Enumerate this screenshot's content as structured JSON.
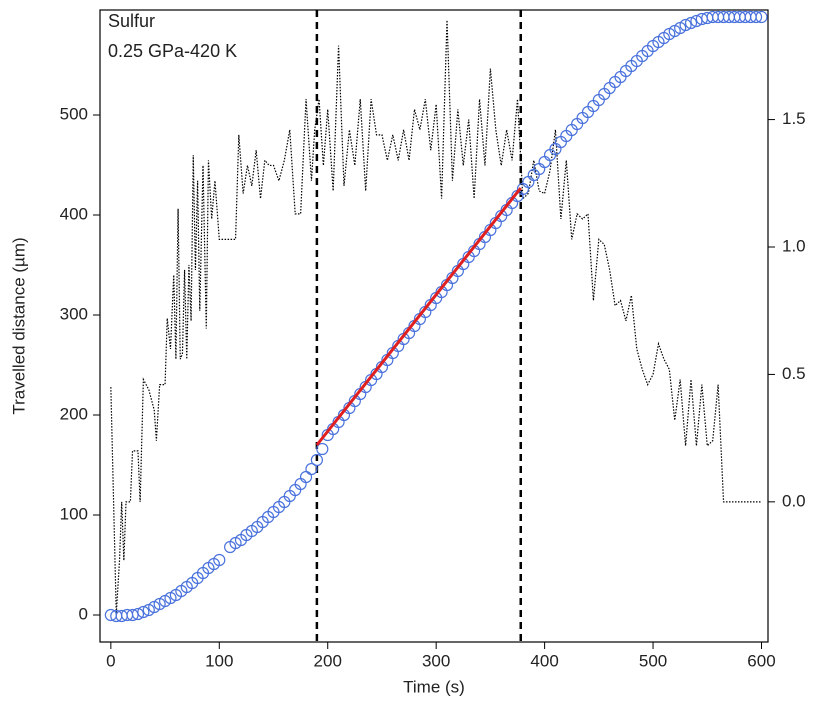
{
  "chart_data": {
    "type": "scatter-line",
    "annotations": [
      "Sulfur",
      "0.25 GPa-420 K"
    ],
    "xlabel": "Time (s)",
    "ylabel": "Travelled distance (µm)",
    "xlim": [
      -10,
      606
    ],
    "xticks": [
      0,
      100,
      200,
      300,
      400,
      500,
      600
    ],
    "ylim": [
      -27,
      605
    ],
    "yticks": [
      0,
      100,
      200,
      300,
      400,
      500
    ],
    "y2lim": [
      -0.55,
      1.93
    ],
    "y2ticks": [
      {
        "value": 0,
        "label": "0.0"
      },
      {
        "value": 0.5,
        "label": "0.5"
      },
      {
        "value": 1,
        "label": "1.0"
      },
      {
        "value": 1.5,
        "label": "1.5"
      }
    ],
    "vlines": [
      190,
      378
    ],
    "series": [
      {
        "style": "markers",
        "color": "#4a72dc",
        "x": [
          0,
          5,
          10,
          15,
          20,
          25,
          30,
          35,
          40,
          45,
          50,
          55,
          60,
          65,
          70,
          75,
          80,
          85,
          90,
          95,
          100,
          110,
          115,
          120,
          125,
          130,
          135,
          140,
          145,
          150,
          155,
          160,
          165,
          170,
          175,
          180,
          185,
          190,
          195,
          200,
          205,
          210,
          215,
          220,
          225,
          230,
          235,
          240,
          245,
          250,
          255,
          260,
          265,
          270,
          275,
          280,
          285,
          290,
          295,
          300,
          305,
          310,
          315,
          320,
          325,
          330,
          335,
          340,
          345,
          350,
          355,
          360,
          365,
          370,
          375,
          380,
          385,
          390,
          395,
          400,
          405,
          410,
          415,
          420,
          425,
          430,
          435,
          440,
          445,
          450,
          455,
          460,
          465,
          470,
          475,
          480,
          485,
          490,
          495,
          500,
          505,
          510,
          515,
          520,
          525,
          530,
          535,
          540,
          545,
          550,
          555,
          560,
          565,
          570,
          575,
          580,
          585,
          590,
          595,
          600
        ],
        "values": [
          0,
          -1,
          -1,
          0,
          0,
          1,
          3,
          5,
          8,
          11,
          14,
          17,
          20,
          24,
          28,
          32,
          37,
          42,
          47,
          51,
          55,
          68,
          72,
          75,
          80,
          84,
          88,
          93,
          98,
          103,
          108,
          113,
          119,
          125,
          131,
          138,
          146,
          155,
          166,
          180,
          186,
          193,
          200,
          207,
          214,
          221,
          228,
          235,
          241,
          248,
          255,
          262,
          269,
          276,
          282,
          289,
          296,
          303,
          310,
          317,
          323,
          330,
          337,
          344,
          351,
          358,
          364,
          371,
          378,
          385,
          392,
          399,
          405,
          412,
          419,
          426,
          433,
          440,
          446,
          453,
          460,
          466,
          473,
          479,
          485,
          491,
          497,
          503,
          509,
          515,
          521,
          527,
          533,
          538,
          544,
          549,
          554,
          559,
          564,
          569,
          573,
          577,
          581,
          584,
          587,
          590,
          592,
          594,
          596,
          597,
          598,
          598,
          598,
          598,
          598,
          598,
          598,
          598,
          598,
          598
        ]
      },
      {
        "style": "line",
        "color": "#e02020",
        "x": [
          190,
          378
        ],
        "values": [
          170,
          427
        ]
      },
      {
        "style": "dotted",
        "color": "#000000",
        "axis": "y2",
        "x": [
          0,
          5,
          8,
          10,
          12,
          14,
          18,
          20,
          25,
          27,
          30,
          35,
          40,
          42,
          45,
          50,
          52,
          55,
          58,
          60,
          62,
          64,
          66,
          68,
          70,
          72,
          74,
          76,
          78,
          80,
          82,
          85,
          88,
          90,
          93,
          96,
          100,
          110,
          115,
          118,
          122,
          126,
          130,
          134,
          138,
          142,
          146,
          150,
          155,
          160,
          165,
          170,
          175,
          180,
          185,
          188,
          192,
          196,
          200,
          205,
          210,
          215,
          220,
          225,
          230,
          235,
          240,
          245,
          250,
          255,
          260,
          265,
          270,
          275,
          280,
          285,
          290,
          295,
          300,
          305,
          310,
          315,
          320,
          325,
          330,
          335,
          340,
          345,
          350,
          355,
          360,
          365,
          370,
          375,
          380,
          385,
          390,
          395,
          400,
          405,
          410,
          415,
          420,
          425,
          430,
          435,
          440,
          445,
          450,
          455,
          460,
          465,
          470,
          475,
          480,
          485,
          490,
          495,
          500,
          505,
          510,
          515,
          520,
          525,
          530,
          535,
          540,
          545,
          550,
          555,
          560,
          565,
          570,
          580,
          600
        ],
        "values": [
          0.45,
          -0.44,
          -0.23,
          0,
          -0.23,
          0,
          0,
          0.2,
          0.2,
          0,
          0.48,
          0.44,
          0.36,
          0.24,
          0.46,
          0.46,
          0.72,
          0.6,
          0.89,
          0.56,
          1.15,
          0.56,
          0.58,
          0.91,
          0.56,
          0.93,
          0.71,
          1.36,
          0.91,
          1.26,
          0.75,
          1.32,
          0.68,
          1.34,
          1.11,
          1.26,
          1.03,
          1.03,
          1.03,
          1.44,
          1.21,
          1.32,
          1.24,
          1.38,
          1.19,
          1.34,
          1.32,
          1.32,
          1.26,
          1.34,
          1.46,
          1.13,
          1.13,
          1.58,
          1.26,
          1.46,
          1.58,
          1.32,
          1.54,
          1.22,
          1.79,
          1.24,
          1.46,
          1.32,
          1.58,
          1.22,
          1.58,
          1.44,
          1.44,
          1.34,
          1.44,
          1.34,
          1.46,
          1.34,
          1.54,
          1.46,
          1.58,
          1.38,
          1.56,
          1.19,
          1.89,
          1.26,
          1.54,
          1.32,
          1.5,
          1.19,
          1.58,
          1.32,
          1.7,
          1.46,
          1.32,
          1.46,
          1.34,
          1.58,
          1.19,
          1.21,
          1.34,
          1.22,
          1.21,
          1.3,
          1.46,
          1.11,
          1.34,
          1.03,
          1.13,
          1.11,
          1.13,
          0.79,
          1.03,
          1.01,
          0.91,
          0.77,
          0.79,
          0.71,
          0.81,
          0.6,
          0.52,
          0.46,
          0.5,
          0.62,
          0.56,
          0.52,
          0.32,
          0.48,
          0.22,
          0.48,
          0.22,
          0.46,
          0.22,
          0.24,
          0.46,
          0,
          0,
          0,
          0
        ]
      }
    ]
  }
}
